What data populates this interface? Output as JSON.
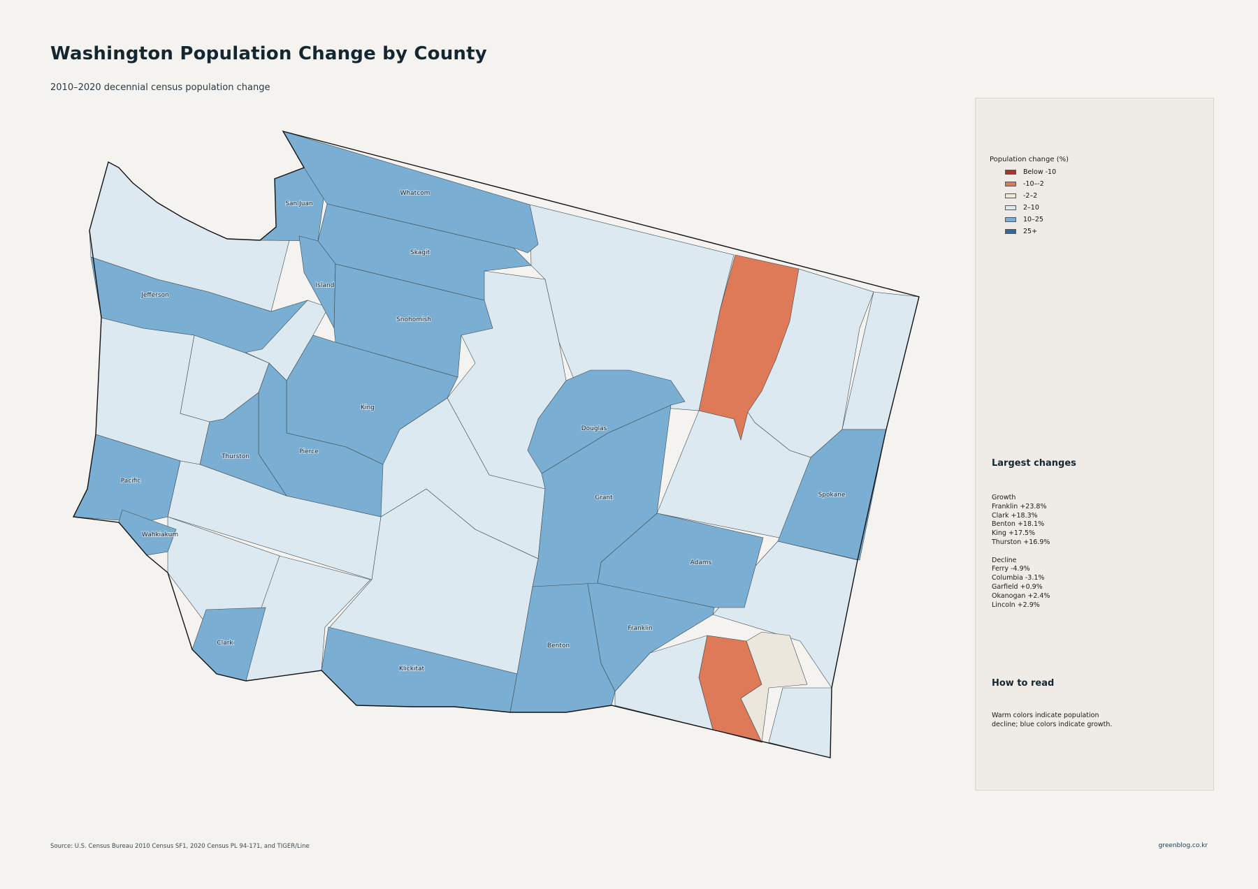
{
  "title": "Washington Population Change by County",
  "subtitle": "2010–2020 decennial census population change",
  "legend": {
    "title": "Population change (%)",
    "items": [
      {
        "label": "Below -10",
        "color": "#9e3a2d"
      },
      {
        "label": "-10–-2",
        "color": "#de7a58"
      },
      {
        "label": "-2–2",
        "color": "#ece7dc"
      },
      {
        "label": "2–10",
        "color": "#dde9f0"
      },
      {
        "label": "10–25",
        "color": "#7aaed2"
      },
      {
        "label": "25+",
        "color": "#2d6aa0"
      }
    ]
  },
  "largest_changes": {
    "heading": "Largest changes",
    "growth_label": "Growth",
    "growth": [
      "Franklin  +23.8%",
      "Clark  +18.3%",
      "Benton  +18.1%",
      "King  +17.5%",
      "Thurston  +16.9%"
    ],
    "decline_label": "Decline",
    "decline": [
      "Ferry  -4.9%",
      "Columbia  -3.1%",
      "Garfield  +0.9%",
      "Okanogan  +2.4%",
      "Lincoln  +2.9%"
    ]
  },
  "how_to_read": {
    "heading": "How to read",
    "text": "Warm colors indicate population decline; blue colors indicate growth."
  },
  "source": "Source: U.S. Census Bureau 2010 Census SF1, 2020 Census PL 94-171, and TIGER/Line",
  "site": "greenblog.co.kr",
  "map_labels": {
    "san_juan": "San Juan",
    "whatcom": "Whatcom",
    "skagit": "Skagit",
    "island": "Island",
    "jefferson": "Jefferson",
    "snohomish": "Snohomish",
    "king": "King",
    "pierce": "Pierce",
    "thurston": "Thurston",
    "pacific": "Pacific",
    "wahkiakum": "Wahkiakum",
    "clark": "Clark",
    "klickitat": "Klickitat",
    "benton": "Benton",
    "franklin": "Franklin",
    "adams": "Adams",
    "grant": "Grant",
    "douglas": "Douglas",
    "spokane": "Spokane"
  },
  "county_classes": {
    "san_juan": "10–25",
    "whatcom": "10–25",
    "skagit": "10–25",
    "island": "10–25",
    "jefferson": "10–25",
    "snohomish": "10–25",
    "king": "10–25",
    "pierce": "10–25",
    "thurston": "10–25",
    "pacific": "10–25",
    "wahkiakum": "10–25",
    "clark": "10–25",
    "klickitat": "10–25",
    "benton": "10–25",
    "franklin": "10–25",
    "adams": "10–25",
    "grant": "10–25",
    "douglas": "10–25",
    "spokane": "10–25",
    "ferry": "-10–-2",
    "columbia": "-10–-2",
    "garfield": "-2–2",
    "clallam": "2–10",
    "grays_harbor": "2–10",
    "mason": "2–10",
    "kitsap": "2–10",
    "lewis": "2–10",
    "cowlitz": "2–10",
    "skamania": "2–10",
    "yakima": "2–10",
    "kittitas": "2–10",
    "chelan": "2–10",
    "okanogan": "2–10",
    "stevens": "2–10",
    "pend_oreille": "2–10",
    "lincoln": "2–10",
    "whitman": "2–10",
    "walla_walla": "2–10",
    "asotin": "2–10"
  }
}
